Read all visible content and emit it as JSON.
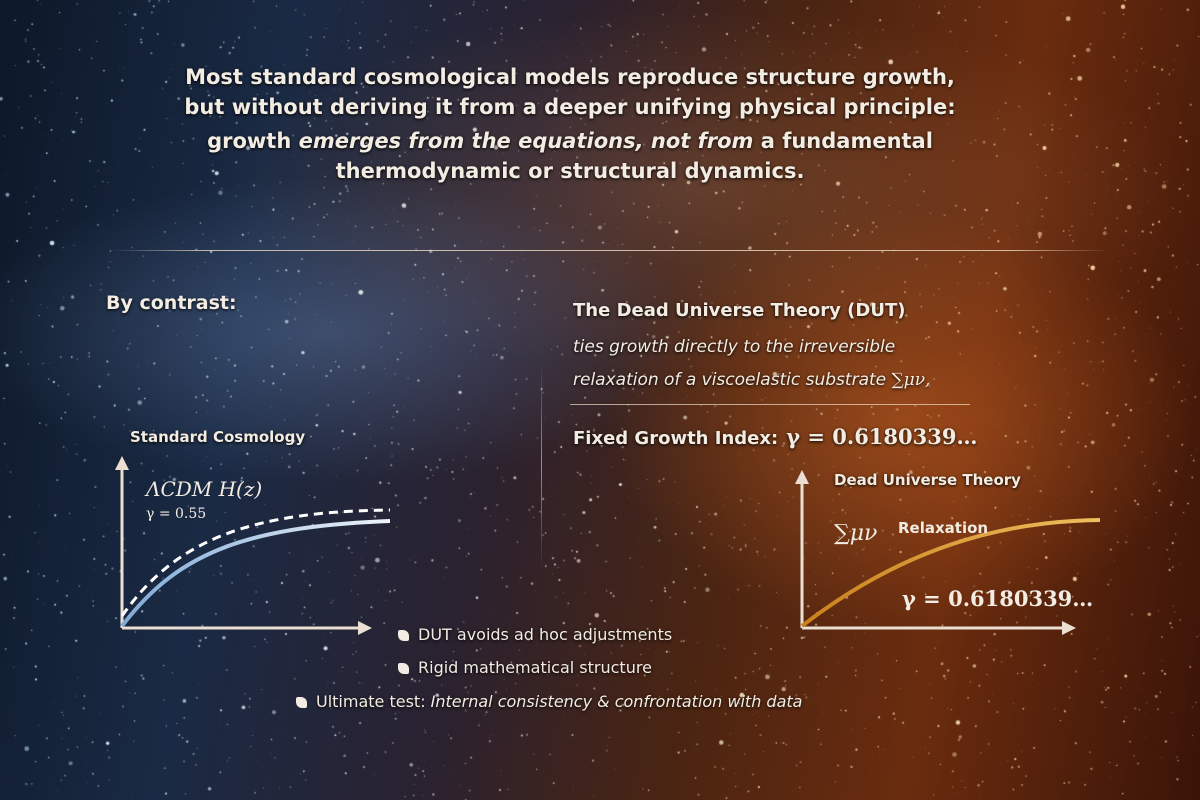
{
  "intro": {
    "line1": "Most standard cosmological models reproduce structure growth,",
    "line2": "but without deriving it from a deeper unifying physical principle:",
    "line3_a": "growth ",
    "line3_b": "emerges from the equations, not from",
    "line3_c": " a fundamental",
    "line4": "thermodynamic or structural dynamics."
  },
  "contrast_label": "By contrast:",
  "dut": {
    "title": "The Dead Universe Theory (DUT)",
    "line1": "ties growth directly to the irreversible",
    "line2": "relaxation of a viscoelastic substrate",
    "line2_symbol": "∑μν,",
    "growth_label": "Fixed Growth Index:",
    "growth_value": "γ = 0.6180339…"
  },
  "left_chart": {
    "title": "Standard Cosmology",
    "model_label": "ΛCDM  H(z)",
    "gamma_label": "γ = 0.55",
    "solid_color": "#a9c8e6",
    "dashed_color": "#ffffff"
  },
  "right_chart": {
    "title": "Dead Universe Theory",
    "curve_label_symbol": "∑μν",
    "curve_label_text": "Relaxation",
    "gamma_label": "γ = 0.6180339…",
    "curve_color": "#e0a030"
  },
  "bullets": [
    {
      "text": "DUT avoids ad hoc adjustments"
    },
    {
      "text": "Rigid mathematical structure"
    },
    {
      "text_a": "Ultimate test: ",
      "text_b": "Internal consistency & confrontation with data"
    }
  ]
}
